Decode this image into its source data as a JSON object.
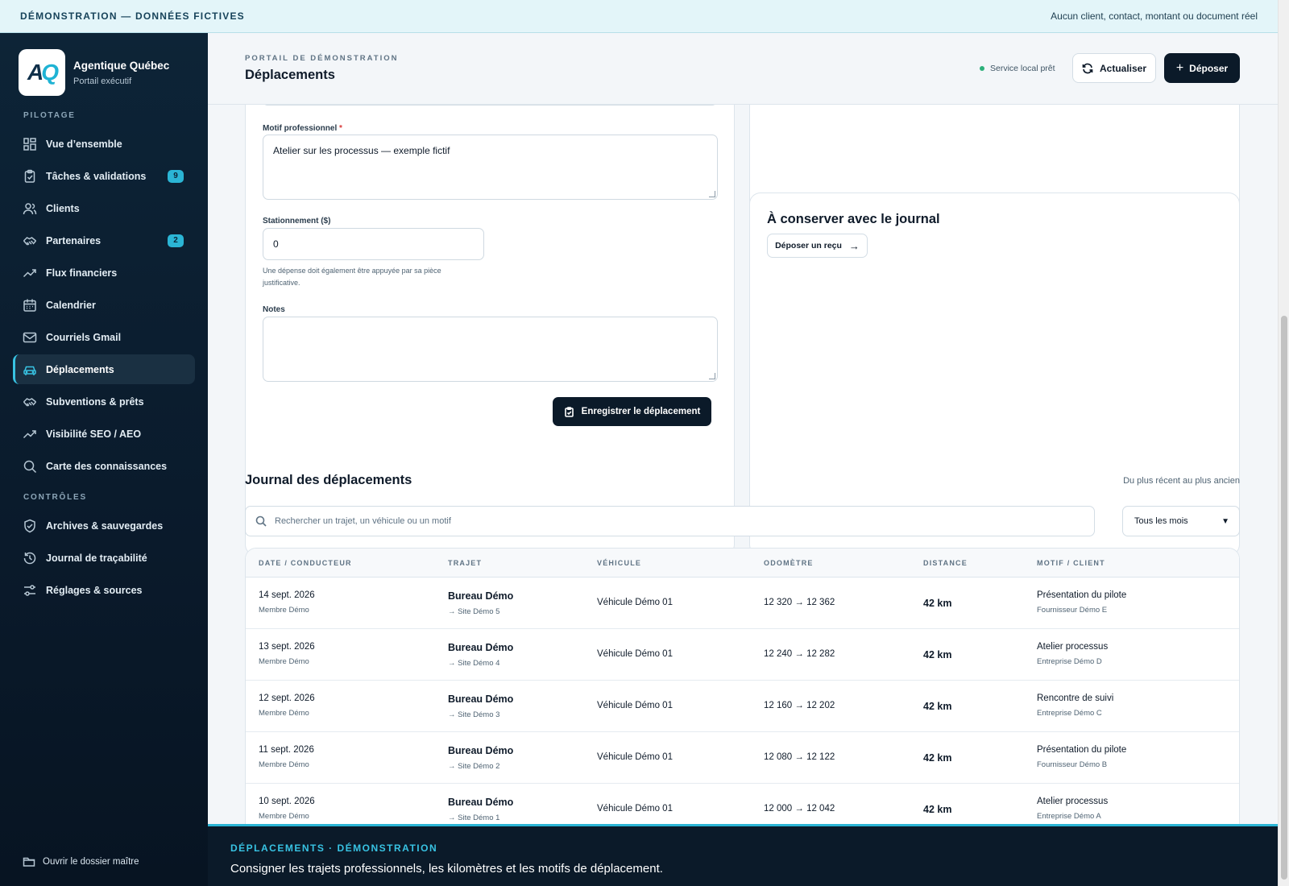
{
  "banner": {
    "left": "DÉMONSTRATION — DONNÉES FICTIVES",
    "right": "Aucun client, contact, montant ou document réel"
  },
  "brand": {
    "logo_a": "A",
    "logo_q": "Q",
    "name": "Agentique Québec",
    "subtitle": "Portail exécutif"
  },
  "sidebar": {
    "section_pilotage": "PILOTAGE",
    "section_controles": "CONTRÔLES",
    "items": [
      {
        "label": "Vue d’ensemble",
        "icon": "dashboard-icon"
      },
      {
        "label": "Tâches & validations",
        "icon": "clipboard-check-icon",
        "badge": "9"
      },
      {
        "label": "Clients",
        "icon": "users-icon"
      },
      {
        "label": "Partenaires",
        "icon": "handshake-icon",
        "badge": "2"
      },
      {
        "label": "Flux financiers",
        "icon": "trend-up-icon"
      },
      {
        "label": "Calendrier",
        "icon": "calendar-icon"
      },
      {
        "label": "Courriels Gmail",
        "icon": "mail-icon"
      },
      {
        "label": "Déplacements",
        "icon": "car-icon",
        "active": true
      },
      {
        "label": "Subventions & prêts",
        "icon": "handshake-icon"
      },
      {
        "label": "Visibilité SEO / AEO",
        "icon": "trend-up-icon"
      },
      {
        "label": "Carte des connaissances",
        "icon": "search-icon"
      }
    ],
    "controls": [
      {
        "label": "Archives & sauvegardes",
        "icon": "shield-check-icon"
      },
      {
        "label": "Journal de traçabilité",
        "icon": "history-icon"
      },
      {
        "label": "Réglages & sources",
        "icon": "sliders-icon"
      }
    ],
    "footer_label": "Ouvrir le dossier maître"
  },
  "header": {
    "kicker": "PORTAIL DE DÉMONSTRATION",
    "title": "Déplacements",
    "status": "Service local prêt",
    "refresh_label": "Actualiser",
    "deposit_label": "Déposer",
    "deposit_symbol": "+"
  },
  "form": {
    "motif_label": "Motif professionnel",
    "required_mark": "*",
    "motif_value": "Atelier sur les processus — exemple fictif",
    "parking_label": "Stationnement ($)",
    "parking_value": "0",
    "parking_hint": "Une dépense doit également être appuyée par sa pièce justificative.",
    "notes_label": "Notes",
    "notes_value": "",
    "save_label": "Enregistrer le déplacement"
  },
  "keep": {
    "title": "À conserver avec le journal",
    "receipt_label": "Déposer un reçu",
    "receipt_arrow": "→"
  },
  "journal": {
    "title": "Journal des déplacements",
    "sort_label": "Du plus récent au plus ancien",
    "search_placeholder": "Rechercher un trajet, un véhicule ou un motif",
    "month_filter": "Tous les mois",
    "month_chevron": "⌄",
    "columns": [
      "DATE / CONDUCTEUR",
      "TRAJET",
      "VÉHICULE",
      "ODOMÈTRE",
      "DISTANCE",
      "MOTIF / CLIENT"
    ],
    "rows": [
      {
        "date": "14 sept. 2026",
        "driver": "Membre Démo",
        "from": "Bureau Démo",
        "to": "→ Site Démo 5",
        "vehicle": "Véhicule Démo 01",
        "odometer": "12 320 → 12 362",
        "distance": "42 km",
        "motif": "Présentation du pilote",
        "client": "Fournisseur Démo E"
      },
      {
        "date": "13 sept. 2026",
        "driver": "Membre Démo",
        "from": "Bureau Démo",
        "to": "→ Site Démo 4",
        "vehicle": "Véhicule Démo 01",
        "odometer": "12 240 → 12 282",
        "distance": "42 km",
        "motif": "Atelier processus",
        "client": "Entreprise Démo D"
      },
      {
        "date": "12 sept. 2026",
        "driver": "Membre Démo",
        "from": "Bureau Démo",
        "to": "→ Site Démo 3",
        "vehicle": "Véhicule Démo 01",
        "odometer": "12 160 → 12 202",
        "distance": "42 km",
        "motif": "Rencontre de suivi",
        "client": "Entreprise Démo C"
      },
      {
        "date": "11 sept. 2026",
        "driver": "Membre Démo",
        "from": "Bureau Démo",
        "to": "→ Site Démo 2",
        "vehicle": "Véhicule Démo 01",
        "odometer": "12 080 → 12 122",
        "distance": "42 km",
        "motif": "Présentation du pilote",
        "client": "Fournisseur Démo B"
      },
      {
        "date": "10 sept. 2026",
        "driver": "Membre Démo",
        "from": "Bureau Démo",
        "to": "→ Site Démo 1",
        "vehicle": "Véhicule Démo 01",
        "odometer": "12 000 → 12 042",
        "distance": "42 km",
        "motif": "Atelier processus",
        "client": "Entreprise Démo A"
      }
    ]
  },
  "bottom": {
    "kicker": "DÉPLACEMENTS · DÉMONSTRATION",
    "text": "Consigner les trajets professionnels, les kilomètres et les motifs de déplacement."
  },
  "colors": {
    "accent": "#2bb5d5",
    "sidebar_bg": "#0d2437",
    "primary_button": "#0b1a29",
    "status_dot": "#2bb07a"
  }
}
